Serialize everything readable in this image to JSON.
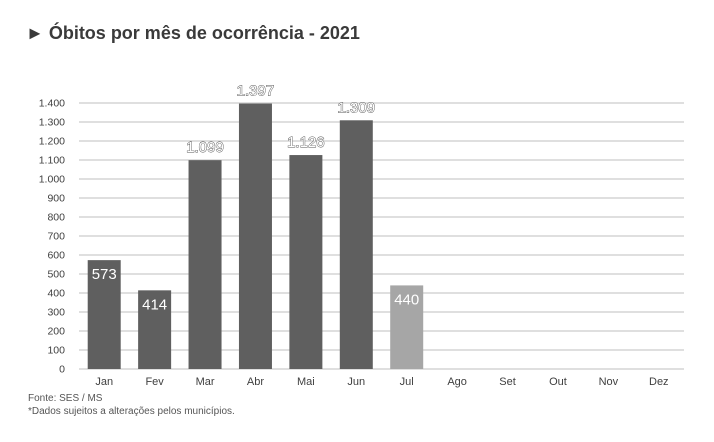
{
  "chart_data": {
    "type": "bar",
    "title": "► Óbitos por mês de ocorrência - 2021",
    "categories": [
      "Jan",
      "Fev",
      "Mar",
      "Abr",
      "Mai",
      "Jun",
      "Jul",
      "Ago",
      "Set",
      "Out",
      "Nov",
      "Dez"
    ],
    "values": [
      573,
      414,
      1099,
      1397,
      1126,
      1309,
      440,
      null,
      null,
      null,
      null,
      null
    ],
    "value_labels": [
      "573",
      "414",
      "1.099",
      "1.397",
      "1.126",
      "1.309",
      "440",
      "",
      "",
      "",
      "",
      ""
    ],
    "ylim": [
      0,
      1400
    ],
    "yticks": [
      0,
      100,
      200,
      300,
      400,
      500,
      600,
      700,
      800,
      900,
      1000,
      1100,
      1200,
      1300,
      1400
    ],
    "ytick_labels": [
      "0",
      "100",
      "200",
      "300",
      "400",
      "500",
      "600",
      "700",
      "800",
      "900",
      "1.000",
      "1.100",
      "1.200",
      "1.300",
      "1.400"
    ],
    "grid": true,
    "colors": {
      "bar": "#5f5f5f",
      "bar_highlight": "#a6a6a6",
      "grid": "#bfbfbf",
      "text": "#404040"
    },
    "highlight_index": 6
  },
  "footer": {
    "source": "Fonte: SES / MS",
    "note": "*Dados sujeitos a alterações pelos municípios."
  }
}
